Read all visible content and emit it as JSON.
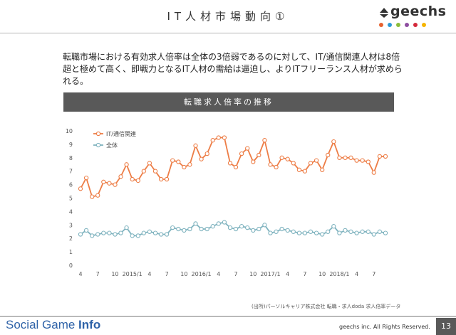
{
  "slide": {
    "title": "IT人材市場動向①"
  },
  "brand": {
    "logo_text": "geechs",
    "dot_colors": [
      "#e6622f",
      "#2c9ad6",
      "#8bbd3b",
      "#8e4ea0",
      "#d4293b",
      "#f6b400"
    ]
  },
  "body": {
    "text": "転職市場における有効求人倍率は全体の3倍弱であるのに対して、IT/通信関連人材は8倍超と極めて高く、即戦力となるIT人材の需給は逼迫し、よりITフリーランス人材が求められる。"
  },
  "chart_header": "転職求人倍率の推移",
  "chart_data": {
    "type": "line",
    "x_tick_labels": [
      "4",
      "7",
      "10",
      "2015/1",
      "4",
      "7",
      "10",
      "2016/1",
      "4",
      "7",
      "10",
      "2017/1",
      "4",
      "7",
      "10",
      "2018/1",
      "4",
      "7"
    ],
    "ylim": [
      0,
      10
    ],
    "y_ticks": [
      0,
      1,
      2,
      3,
      4,
      5,
      6,
      7,
      8,
      9,
      10
    ],
    "grid": false,
    "legend_position": "top-left",
    "series": [
      {
        "name": "IT/通信関連",
        "color": "#ed7d46",
        "values": [
          5.7,
          6.5,
          5.1,
          5.2,
          6.2,
          6.1,
          6.0,
          6.6,
          7.5,
          6.4,
          6.3,
          7.0,
          7.6,
          7.0,
          6.4,
          6.4,
          7.8,
          7.7,
          7.3,
          7.5,
          8.9,
          7.9,
          8.3,
          9.3,
          9.5,
          9.5,
          7.6,
          7.3,
          8.3,
          8.7,
          7.7,
          8.2,
          9.3,
          7.5,
          7.3,
          8.0,
          7.9,
          7.6,
          7.1,
          7.0,
          7.6,
          7.8,
          7.1,
          8.2,
          9.2,
          8.0,
          8.0,
          8.0,
          7.8,
          7.8,
          7.7,
          6.9,
          8.1,
          8.1
        ]
      },
      {
        "name": "全体",
        "color": "#7fb3bf",
        "values": [
          2.3,
          2.6,
          2.2,
          2.3,
          2.4,
          2.4,
          2.3,
          2.4,
          2.8,
          2.2,
          2.2,
          2.4,
          2.5,
          2.4,
          2.3,
          2.3,
          2.8,
          2.7,
          2.6,
          2.7,
          3.1,
          2.7,
          2.7,
          2.9,
          3.1,
          3.2,
          2.8,
          2.7,
          2.9,
          2.8,
          2.6,
          2.7,
          3.0,
          2.4,
          2.5,
          2.7,
          2.6,
          2.5,
          2.4,
          2.4,
          2.5,
          2.4,
          2.3,
          2.5,
          2.9,
          2.4,
          2.6,
          2.5,
          2.4,
          2.5,
          2.5,
          2.3,
          2.5,
          2.4
        ]
      }
    ]
  },
  "source_note": "(出所)パーソルキャリア株式会社 転職・求人doda 求人倍率データ",
  "footer": {
    "brand_light": "Social Game ",
    "brand_bold": "Info",
    "copyright": "geechs inc. All Rights Reserved.",
    "page_number": "13"
  }
}
